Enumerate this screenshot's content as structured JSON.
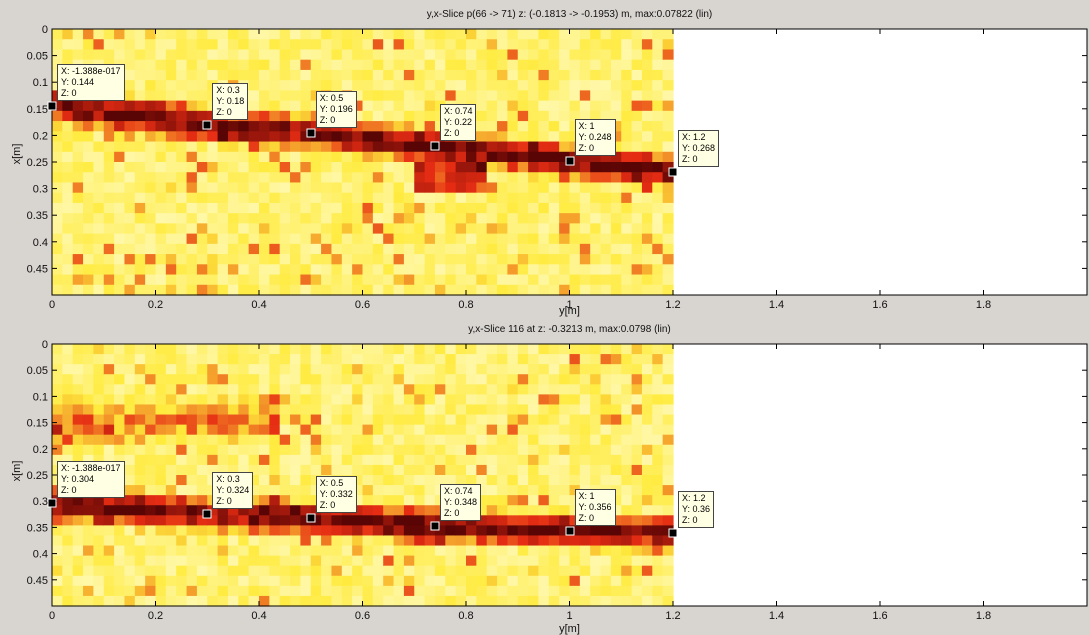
{
  "chart_data": [
    {
      "type": "heatmap",
      "title": "y,x-Slice p(66 -> 71)  z: (-0.1813 -> -0.1953) m, max:0.07822 (lin)",
      "xlabel": "y[m]",
      "ylabel": "x[m]",
      "xlim": [
        0,
        2
      ],
      "ylim": [
        0,
        0.5
      ],
      "y_reversed": true,
      "x_ticks": [
        "0",
        "0.2",
        "0.4",
        "0.6",
        "0.8",
        "1",
        "1.2",
        "1.4",
        "1.6",
        "1.8"
      ],
      "y_ticks": [
        "0",
        "0.05",
        "0.1",
        "0.15",
        "0.2",
        "0.25",
        "0.3",
        "0.35",
        "0.4",
        "0.45"
      ],
      "data_extent_x": 1.2,
      "colormap": "hot (white-yellow-red-black)",
      "datatips": [
        {
          "X": "-1.388e-017",
          "Y": "0.144",
          "Z": "0",
          "x": 0,
          "y": 0.144
        },
        {
          "X": "0.3",
          "Y": "0.18",
          "Z": "0",
          "x": 0.3,
          "y": 0.18
        },
        {
          "X": "0.5",
          "Y": "0.196",
          "Z": "0",
          "x": 0.5,
          "y": 0.196
        },
        {
          "X": "0.74",
          "Y": "0.22",
          "Z": "0",
          "x": 0.74,
          "y": 0.22
        },
        {
          "X": "1",
          "Y": "0.248",
          "Z": "0",
          "x": 1,
          "y": 0.248
        },
        {
          "X": "1.2",
          "Y": "0.268",
          "Z": "0",
          "x": 1.2,
          "y": 0.268
        }
      ]
    },
    {
      "type": "heatmap",
      "title": "y,x-Slice 116 at z: -0.3213 m, max:0.0798 (lin)",
      "xlabel": "y[m]",
      "ylabel": "x[m]",
      "xlim": [
        0,
        2
      ],
      "ylim": [
        0,
        0.5
      ],
      "y_reversed": true,
      "x_ticks": [
        "0",
        "0.2",
        "0.4",
        "0.6",
        "0.8",
        "1",
        "1.2",
        "1.4",
        "1.6",
        "1.8"
      ],
      "y_ticks": [
        "0",
        "0.05",
        "0.1",
        "0.15",
        "0.2",
        "0.25",
        "0.3",
        "0.35",
        "0.4",
        "0.45"
      ],
      "data_extent_x": 1.2,
      "colormap": "hot (white-yellow-red-black)",
      "datatips": [
        {
          "X": "-1.388e-017",
          "Y": "0.304",
          "Z": "0",
          "x": 0,
          "y": 0.304
        },
        {
          "X": "0.3",
          "Y": "0.324",
          "Z": "0",
          "x": 0.3,
          "y": 0.324
        },
        {
          "X": "0.5",
          "Y": "0.332",
          "Z": "0",
          "x": 0.5,
          "y": 0.332
        },
        {
          "X": "0.74",
          "Y": "0.348",
          "Z": "0",
          "x": 0.74,
          "y": 0.348
        },
        {
          "X": "1",
          "Y": "0.356",
          "Z": "0",
          "x": 1,
          "y": 0.356
        },
        {
          "X": "1.2",
          "Y": "0.36",
          "Z": "0",
          "x": 1.2,
          "y": 0.36
        }
      ]
    }
  ]
}
